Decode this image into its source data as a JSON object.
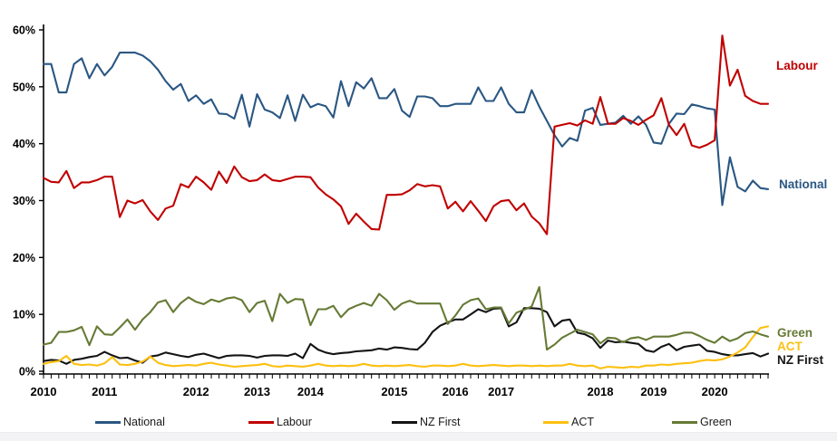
{
  "chart_data": {
    "type": "line",
    "title": "",
    "xlabel": "",
    "ylabel": "",
    "grid": false,
    "y_axis": {
      "min": 0,
      "max": 60,
      "step": 10,
      "tick_suffix": "%",
      "tick_labels": [
        "0%",
        "10%",
        "20%",
        "30%",
        "40%",
        "50%",
        "60%"
      ]
    },
    "x_axis": {
      "n_points": 96,
      "year_labels": [
        "2010",
        "2011",
        "2012",
        "2013",
        "2014",
        "2015",
        "2016",
        "2017",
        "2018",
        "2019",
        "2020"
      ],
      "year_label_indices": [
        0,
        8,
        20,
        28,
        35,
        46,
        54,
        60,
        73,
        80,
        88
      ]
    },
    "series": [
      {
        "name": "National",
        "color": "#2a5783",
        "values": [
          54,
          54,
          49,
          49,
          54,
          55,
          51.5,
          54,
          52,
          53.5,
          56,
          56,
          56,
          55.5,
          54.5,
          53,
          51,
          49.5,
          50.5,
          47.5,
          48.5,
          47,
          47.8,
          45.3,
          45.2,
          44.4,
          48.6,
          43,
          48.7,
          46,
          45.5,
          44.5,
          48.5,
          44,
          48.6,
          46.4,
          47,
          46.6,
          44.6,
          51,
          46.6,
          50.8,
          49.7,
          51.5,
          48,
          48,
          49.6,
          45.8,
          44.7,
          48.3,
          48.3,
          48,
          46.6,
          46.6,
          47,
          47,
          47,
          49.9,
          47.5,
          47.5,
          49.9,
          47,
          45.5,
          45.5,
          49.4,
          46.5,
          44,
          41.5,
          39.5,
          41,
          40.5,
          45.8,
          46.3,
          43.3,
          43.5,
          43.7,
          44.9,
          43.5,
          44.8,
          43.3,
          40.2,
          40,
          43.5,
          45.3,
          45.2,
          46.9,
          46.6,
          46.2,
          46,
          29.2,
          37.6,
          32.4,
          31.6,
          33.5,
          32.2,
          32
        ]
      },
      {
        "name": "Labour",
        "color": "#c00000",
        "values": [
          34,
          33.3,
          33.2,
          35.2,
          32.2,
          33.2,
          33.2,
          33.6,
          34.2,
          34.2,
          27.1,
          30,
          29.5,
          30.1,
          28.1,
          26.6,
          28.6,
          29.1,
          32.9,
          32.3,
          34.2,
          33.2,
          31.9,
          35.1,
          33.1,
          36,
          34.1,
          33.4,
          33.6,
          34.6,
          33.6,
          33.4,
          33.8,
          34.2,
          34.2,
          34.1,
          32.3,
          31.1,
          30.2,
          29,
          25.9,
          27.7,
          26.3,
          25,
          24.9,
          31,
          31,
          31.1,
          31.8,
          32.9,
          32.5,
          32.7,
          32.5,
          28.6,
          29.8,
          28.1,
          29.9,
          28.2,
          26.4,
          29,
          29.9,
          30.1,
          28.3,
          29.5,
          27.2,
          26,
          24.1,
          43,
          43.3,
          43.6,
          43.2,
          44.1,
          43.5,
          48.2,
          43.5,
          43.5,
          44.5,
          44,
          43.3,
          44.2,
          45,
          48,
          43.3,
          41.5,
          43.5,
          39.7,
          39.3,
          39.8,
          40.6,
          59,
          50.2,
          53,
          48.4,
          47.5,
          47,
          47
        ]
      },
      {
        "name": "NZ First",
        "color": "#141414",
        "values": [
          1.8,
          2,
          1.9,
          1.3,
          2,
          2.2,
          2.5,
          2.7,
          3.4,
          2.8,
          2.3,
          2.4,
          1.9,
          1.5,
          2.6,
          2.8,
          3.3,
          3,
          2.7,
          2.5,
          2.9,
          3.1,
          2.7,
          2.3,
          2.7,
          2.8,
          2.8,
          2.7,
          2.4,
          2.7,
          2.8,
          2.8,
          2.7,
          3.1,
          2.3,
          4.8,
          3.8,
          3.3,
          3,
          3.2,
          3.3,
          3.5,
          3.6,
          3.7,
          4,
          3.8,
          4.2,
          4.1,
          3.9,
          3.8,
          5,
          6.9,
          8,
          8.6,
          9.1,
          9.1,
          10,
          10.9,
          10.4,
          11,
          11.1,
          7.9,
          8.6,
          11.1,
          11.1,
          11,
          10.4,
          7.9,
          8.9,
          9.1,
          6.8,
          6.5,
          5.8,
          4.1,
          5.4,
          5.1,
          5.2,
          5,
          4.8,
          3.7,
          3.4,
          4.3,
          4.8,
          3.7,
          4.3,
          4.5,
          4.7,
          3.6,
          3.4,
          3,
          2.8,
          2.8,
          3,
          3.2,
          2.6,
          3.1
        ]
      },
      {
        "name": "ACT",
        "color": "#fdc010",
        "values": [
          1.3,
          1.6,
          1.8,
          2.7,
          1.3,
          1.1,
          1.2,
          1,
          1.4,
          2.5,
          1.2,
          1.1,
          1.3,
          1.7,
          2.6,
          1.5,
          1.1,
          0.9,
          1,
          1.1,
          1,
          1.3,
          1.5,
          1.2,
          1,
          0.8,
          0.9,
          1,
          1.1,
          1.3,
          0.9,
          0.8,
          1,
          0.9,
          0.8,
          1,
          1.3,
          1,
          0.9,
          1,
          0.9,
          1,
          1.3,
          1,
          0.9,
          1,
          0.9,
          1,
          1.1,
          0.9,
          0.8,
          1,
          1,
          0.9,
          1,
          1.3,
          1,
          0.9,
          1,
          1.1,
          1,
          0.9,
          1,
          1,
          0.9,
          1,
          0.9,
          1,
          1,
          1.3,
          1,
          0.9,
          1,
          0.5,
          0.8,
          0.7,
          0.6,
          0.8,
          0.7,
          1,
          1,
          1.2,
          1.1,
          1.3,
          1.4,
          1.5,
          1.8,
          2,
          1.9,
          2.1,
          2.6,
          3.3,
          4.2,
          6,
          7.6,
          7.9
        ]
      },
      {
        "name": "Green",
        "color": "#667a35",
        "values": [
          4.7,
          5,
          6.9,
          6.9,
          7.2,
          7.8,
          4.6,
          7.9,
          6.5,
          6.4,
          7.7,
          9.1,
          7.3,
          9.1,
          10.4,
          12.1,
          12.5,
          10.4,
          12,
          13,
          12.2,
          11.8,
          12.6,
          12.2,
          12.8,
          13,
          12.5,
          10.4,
          12,
          12.4,
          8.8,
          13.6,
          12,
          12.7,
          12.6,
          8.1,
          10.9,
          10.9,
          11.5,
          9.5,
          10.9,
          11.5,
          12,
          11.5,
          13.6,
          12.5,
          10.8,
          11.9,
          12.4,
          11.9,
          11.9,
          11.9,
          11.9,
          8.3,
          9.8,
          11.7,
          12.5,
          12.8,
          10.9,
          11.2,
          11.2,
          8.4,
          10.3,
          10.8,
          11.4,
          14.8,
          3.8,
          4.7,
          5.9,
          6.6,
          7.3,
          6.9,
          6.5,
          4.9,
          5.9,
          5.8,
          5.1,
          5.8,
          6,
          5.5,
          6.1,
          6.1,
          6.1,
          6.4,
          6.8,
          6.8,
          6.2,
          5.5,
          5,
          6.1,
          5.3,
          5.8,
          6.7,
          7,
          6.5,
          6.1
        ]
      }
    ],
    "end_labels": [
      {
        "text": "Labour",
        "color": "#c00000",
        "x": 856,
        "y": 65
      },
      {
        "text": "National",
        "color": "#2a5783",
        "x": 859,
        "y": 196
      },
      {
        "text": "Green",
        "color": "#667a35",
        "x": 857,
        "y": 360
      },
      {
        "text": "ACT",
        "color": "#fdc010",
        "x": 857,
        "y": 375
      },
      {
        "text": "NZ First",
        "color": "#141414",
        "x": 857,
        "y": 390
      }
    ],
    "legend": [
      {
        "label": "National",
        "color": "#2a5783",
        "x": 105
      },
      {
        "label": "Labour",
        "color": "#c00000",
        "x": 274
      },
      {
        "label": "NZ First",
        "color": "#141414",
        "x": 432
      },
      {
        "label": "ACT",
        "color": "#fdc010",
        "x": 599
      },
      {
        "label": "Green",
        "color": "#667a35",
        "x": 741
      }
    ]
  },
  "layout_meta": {
    "note": ""
  }
}
